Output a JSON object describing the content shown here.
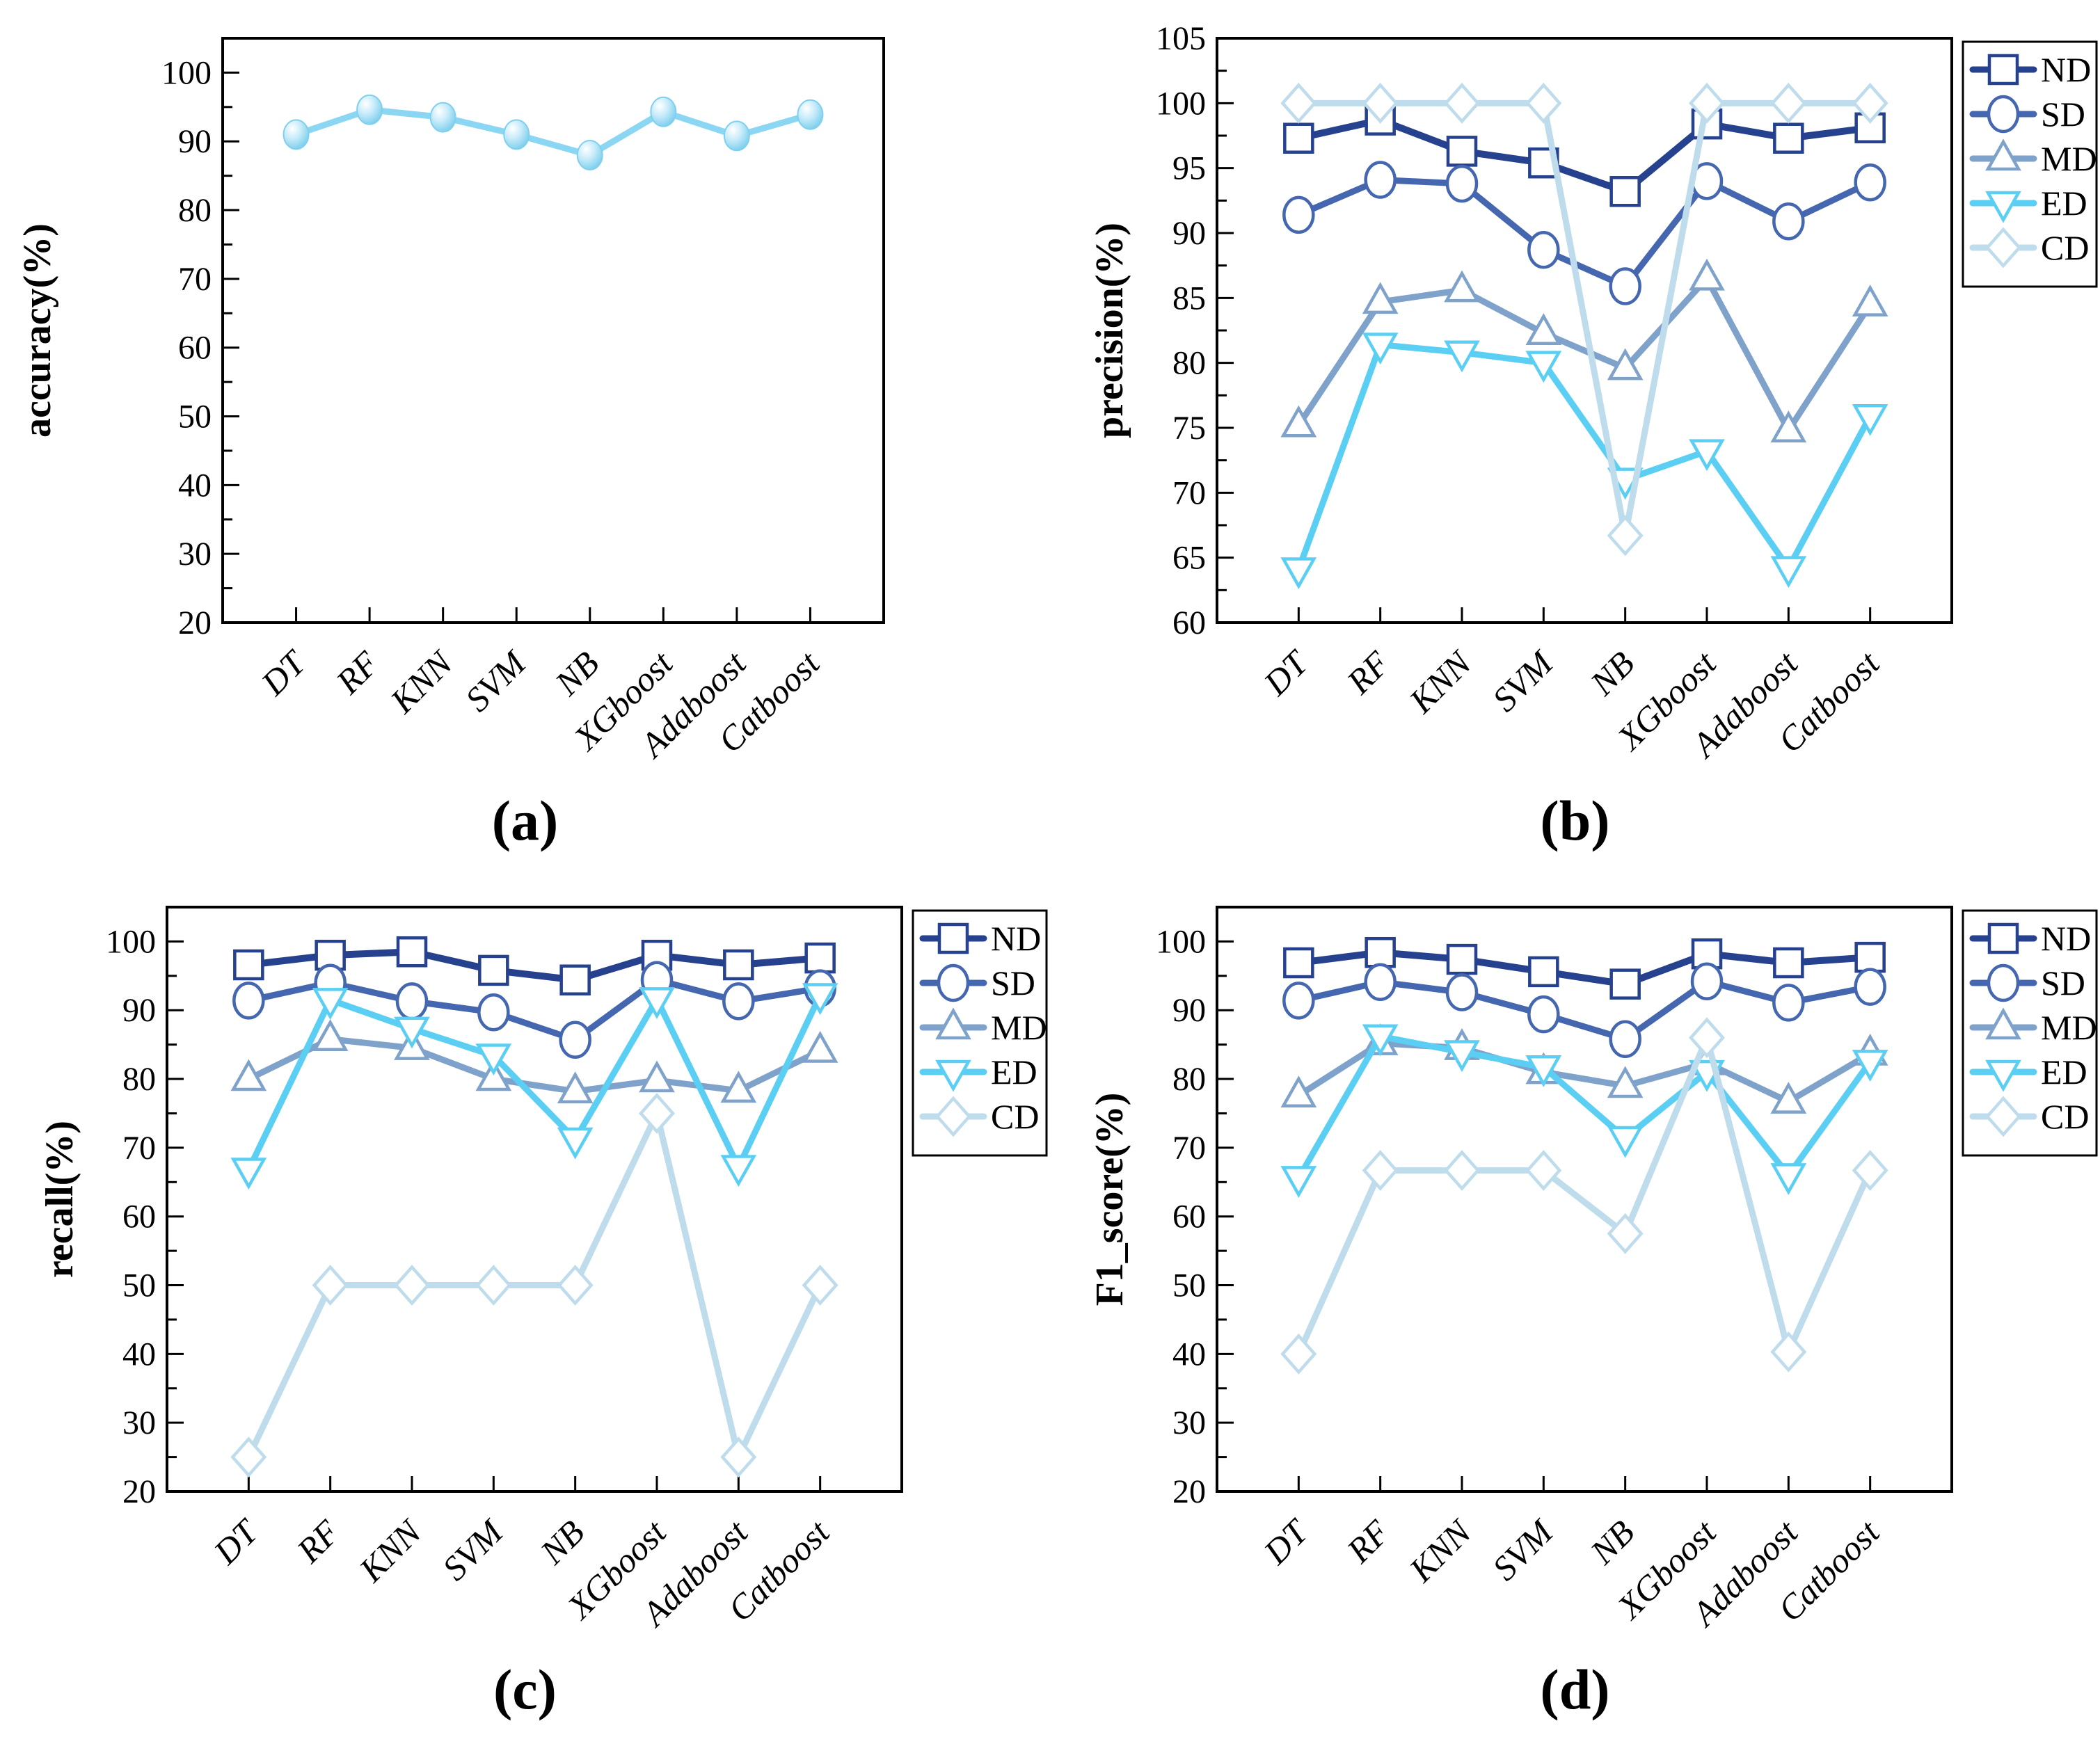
{
  "page": {
    "background": "#ffffff"
  },
  "figure_captions": {
    "a": "(a)",
    "b": "(b)",
    "c": "(c)",
    "d": "(d)"
  },
  "categories": [
    "DT",
    "RF",
    "KNN",
    "SVM",
    "NB",
    "XGboost",
    "Adaboost",
    "Catboost"
  ],
  "legend_labels": [
    "ND",
    "SD",
    "MD",
    "ED",
    "CD"
  ],
  "colors": {
    "accuracy_line": "#8bd7f3",
    "ND": "#26418d",
    "SD": "#4467af",
    "MD": "#7fa2cb",
    "ED": "#5bcff3",
    "CD": "#bedcec",
    "axis": "#000000"
  },
  "chart_data": [
    {
      "id": "a",
      "type": "line",
      "ylabel": "accuracy(%)",
      "xlabel": "",
      "categories": [
        "DT",
        "RF",
        "KNN",
        "SVM",
        "NB",
        "XGboost",
        "Adaboost",
        "Catboost"
      ],
      "ylim": [
        20,
        105
      ],
      "ytick_start": 20,
      "ytick_end": 100,
      "ytick_step": 10,
      "yminor_step": 5,
      "grid": false,
      "legend": false,
      "series": [
        {
          "name": "accuracy",
          "marker": "sphere",
          "color": "#8bd7f3",
          "values": [
            91.0,
            94.6,
            93.5,
            91.0,
            88.0,
            94.3,
            90.8,
            93.9
          ]
        }
      ]
    },
    {
      "id": "b",
      "type": "line",
      "ylabel": "precision(%)",
      "xlabel": "",
      "categories": [
        "DT",
        "RF",
        "KNN",
        "SVM",
        "NB",
        "XGboost",
        "Adaboost",
        "Catboost"
      ],
      "ylim": [
        60,
        105
      ],
      "ytick_start": 60,
      "ytick_end": 105,
      "ytick_step": 5,
      "yminor_step": 2.5,
      "grid": false,
      "legend": true,
      "legend_position": "right-top",
      "series": [
        {
          "name": "ND",
          "marker": "square",
          "color": "#26418d",
          "values": [
            97.3,
            98.7,
            96.3,
            95.4,
            93.2,
            98.4,
            97.3,
            98.1
          ]
        },
        {
          "name": "SD",
          "marker": "circle",
          "color": "#4467af",
          "values": [
            91.4,
            94.1,
            93.8,
            88.7,
            85.9,
            94.0,
            90.9,
            93.9
          ]
        },
        {
          "name": "MD",
          "marker": "triangle-up",
          "color": "#7fa2cb",
          "values": [
            75.2,
            84.7,
            85.6,
            82.3,
            79.6,
            86.5,
            74.8,
            84.5
          ]
        },
        {
          "name": "ED",
          "marker": "triangle-down",
          "color": "#5bcff3",
          "values": [
            64.1,
            81.4,
            80.8,
            80.0,
            71.0,
            73.2,
            64.2,
            75.9
          ]
        },
        {
          "name": "CD",
          "marker": "diamond",
          "color": "#bedcec",
          "values": [
            100,
            100,
            100,
            100,
            66.7,
            100,
            100,
            100
          ]
        }
      ]
    },
    {
      "id": "c",
      "type": "line",
      "ylabel": "recall(%)",
      "xlabel": "",
      "categories": [
        "DT",
        "RF",
        "KNN",
        "SVM",
        "NB",
        "XGboost",
        "Adaboost",
        "Catboost"
      ],
      "ylim": [
        20,
        105
      ],
      "ytick_start": 20,
      "ytick_end": 100,
      "ytick_step": 10,
      "yminor_step": 5,
      "grid": false,
      "legend": true,
      "legend_position": "right-top",
      "series": [
        {
          "name": "ND",
          "marker": "square",
          "color": "#26418d",
          "values": [
            96.6,
            98.0,
            98.5,
            95.8,
            94.4,
            98.0,
            96.6,
            97.6
          ]
        },
        {
          "name": "SD",
          "marker": "circle",
          "color": "#4467af",
          "values": [
            91.4,
            94.0,
            91.3,
            89.7,
            85.7,
            94.4,
            91.3,
            93.2
          ]
        },
        {
          "name": "MD",
          "marker": "triangle-up",
          "color": "#7fa2cb",
          "values": [
            80.0,
            85.8,
            84.5,
            80.0,
            78.2,
            79.8,
            78.3,
            84.1
          ]
        },
        {
          "name": "ED",
          "marker": "triangle-down",
          "color": "#5bcff3",
          "values": [
            66.8,
            91.5,
            87.3,
            83.4,
            71.2,
            91.6,
            67.2,
            92.2
          ]
        },
        {
          "name": "CD",
          "marker": "diamond",
          "color": "#bedcec",
          "values": [
            25,
            50,
            50,
            50,
            50,
            75,
            25,
            50
          ]
        }
      ]
    },
    {
      "id": "d",
      "type": "line",
      "ylabel": "F1_score(%)",
      "xlabel": "",
      "categories": [
        "DT",
        "RF",
        "KNN",
        "SVM",
        "NB",
        "XGboost",
        "Adaboost",
        "Catboost"
      ],
      "ylim": [
        20,
        105
      ],
      "ytick_start": 20,
      "ytick_end": 100,
      "ytick_step": 10,
      "yminor_step": 5,
      "grid": false,
      "legend": true,
      "legend_position": "right-top",
      "series": [
        {
          "name": "ND",
          "marker": "square",
          "color": "#26418d",
          "values": [
            96.9,
            98.4,
            97.4,
            95.6,
            93.8,
            98.2,
            96.9,
            97.7
          ]
        },
        {
          "name": "SD",
          "marker": "circle",
          "color": "#4467af",
          "values": [
            91.4,
            94.1,
            92.6,
            89.4,
            85.8,
            94.2,
            91.1,
            93.4
          ]
        },
        {
          "name": "MD",
          "marker": "triangle-up",
          "color": "#7fa2cb",
          "values": [
            77.6,
            85.2,
            84.5,
            81.0,
            79.0,
            82.3,
            76.7,
            83.7
          ]
        },
        {
          "name": "ED",
          "marker": "triangle-down",
          "color": "#5bcff3",
          "values": [
            65.6,
            86.2,
            83.9,
            81.7,
            71.4,
            81.0,
            66.0,
            82.5
          ]
        },
        {
          "name": "CD",
          "marker": "diamond",
          "color": "#bedcec",
          "values": [
            40.0,
            66.7,
            66.7,
            66.7,
            57.5,
            86.0,
            40.3,
            66.7
          ]
        }
      ]
    }
  ]
}
